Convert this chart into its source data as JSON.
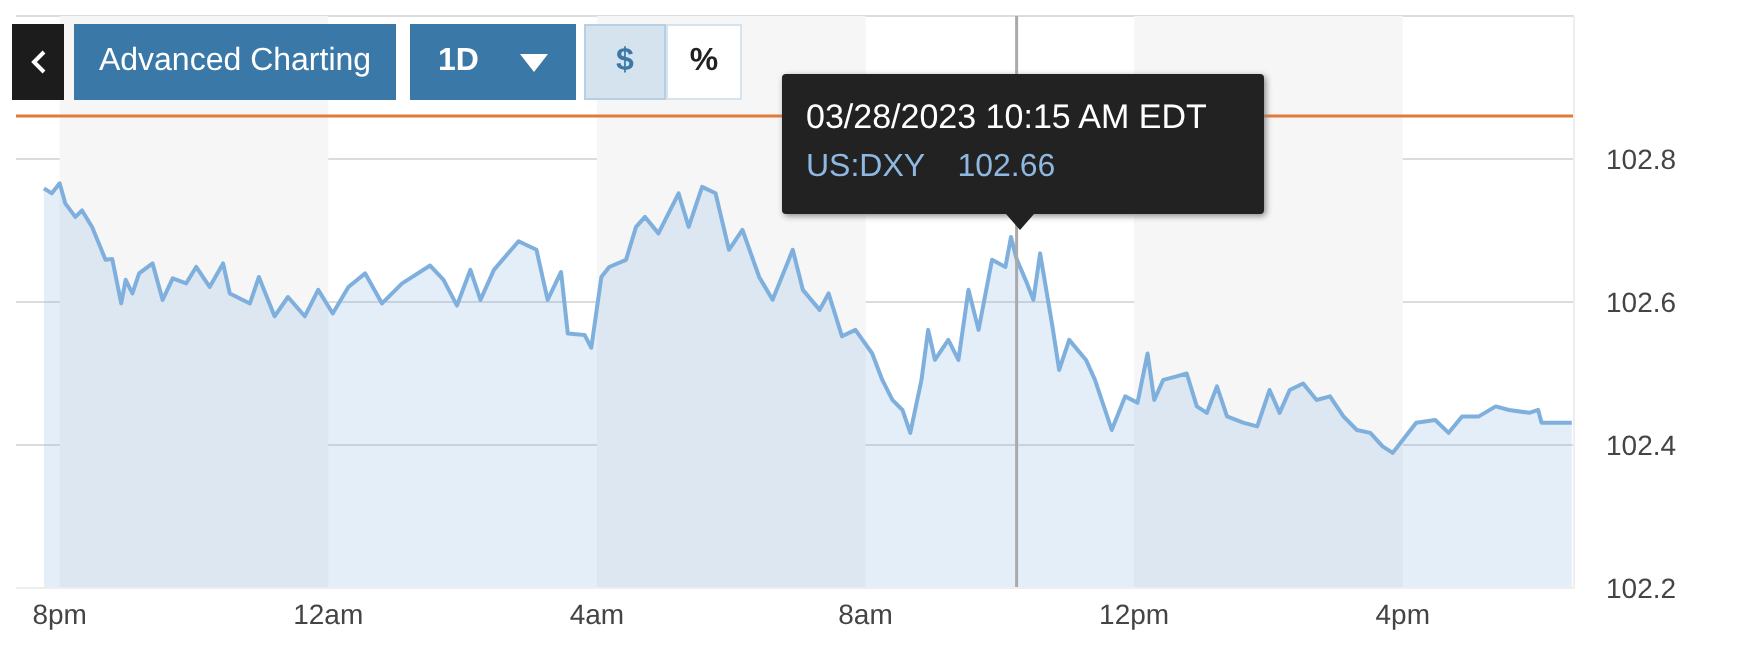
{
  "chart_data": {
    "type": "area",
    "color": "#7fb0dd",
    "x": [
      "2023-03-27T19:46",
      "2023-03-27T19:53",
      "2023-03-27T20:00",
      "2023-03-27T20:05",
      "2023-03-27T20:14",
      "2023-03-27T20:20",
      "2023-03-27T20:29",
      "2023-03-27T20:41",
      "2023-03-27T20:47",
      "2023-03-27T20:55",
      "2023-03-27T20:59",
      "2023-03-27T21:05",
      "2023-03-27T21:11",
      "2023-03-27T21:23",
      "2023-03-27T21:32",
      "2023-03-27T21:41",
      "2023-03-27T21:53",
      "2023-03-27T22:02",
      "2023-03-27T22:14",
      "2023-03-27T22:26",
      "2023-03-27T22:32",
      "2023-03-27T22:50",
      "2023-03-27T22:58",
      "2023-03-27T23:12",
      "2023-03-27T23:24",
      "2023-03-27T23:39",
      "2023-03-27T23:51",
      "2023-03-28T00:04",
      "2023-03-28T00:18",
      "2023-03-28T00:33",
      "2023-03-28T00:48",
      "2023-03-28T01:06",
      "2023-03-28T01:31",
      "2023-03-28T01:43",
      "2023-03-28T01:55",
      "2023-03-28T02:07",
      "2023-03-28T02:16",
      "2023-03-28T02:28",
      "2023-03-28T02:50",
      "2023-03-28T03:06",
      "2023-03-28T03:16",
      "2023-03-28T03:28",
      "2023-03-28T03:34",
      "2023-03-28T03:49",
      "2023-03-28T03:55",
      "2023-03-28T04:04",
      "2023-03-28T04:11",
      "2023-03-28T04:26",
      "2023-03-28T04:35",
      "2023-03-28T04:43",
      "2023-03-28T04:55",
      "2023-03-28T05:13",
      "2023-03-28T05:22",
      "2023-03-28T05:34",
      "2023-03-28T05:46",
      "2023-03-28T05:58",
      "2023-03-28T06:10",
      "2023-03-28T06:25",
      "2023-03-28T06:37",
      "2023-03-28T06:55",
      "2023-03-28T07:04",
      "2023-03-28T07:19",
      "2023-03-28T07:27",
      "2023-03-28T07:39",
      "2023-03-28T07:51",
      "2023-03-28T08:06",
      "2023-03-28T08:15",
      "2023-03-28T08:24",
      "2023-03-28T08:33",
      "2023-03-28T08:40",
      "2023-03-28T08:50",
      "2023-03-28T08:56",
      "2023-03-28T09:02",
      "2023-03-28T09:14",
      "2023-03-28T09:23",
      "2023-03-28T09:32",
      "2023-03-28T09:41",
      "2023-03-28T09:53",
      "2023-03-28T10:05",
      "2023-03-28T10:10",
      "2023-03-28T10:15",
      "2023-03-28T10:23",
      "2023-03-28T10:30",
      "2023-03-28T10:36",
      "2023-03-28T10:47",
      "2023-03-28T10:53",
      "2023-03-28T11:02",
      "2023-03-28T11:17",
      "2023-03-28T11:25",
      "2023-03-28T11:40",
      "2023-03-28T11:52",
      "2023-03-28T12:03",
      "2023-03-28T12:12",
      "2023-03-28T12:18",
      "2023-03-28T12:26",
      "2023-03-28T12:38",
      "2023-03-28T12:47",
      "2023-03-28T12:56",
      "2023-03-28T13:05",
      "2023-03-28T13:14",
      "2023-03-28T13:23",
      "2023-03-28T13:38",
      "2023-03-28T13:50",
      "2023-03-28T14:01",
      "2023-03-28T14:10",
      "2023-03-28T14:19",
      "2023-03-28T14:31",
      "2023-03-28T14:43",
      "2023-03-28T14:55",
      "2023-03-28T15:07",
      "2023-03-28T15:19",
      "2023-03-28T15:31",
      "2023-03-28T15:42",
      "2023-03-28T15:51",
      "2023-03-28T16:00",
      "2023-03-28T16:12",
      "2023-03-28T16:29",
      "2023-03-28T16:41",
      "2023-03-28T16:53",
      "2023-03-28T17:08",
      "2023-03-28T17:23",
      "2023-03-28T17:35",
      "2023-03-28T17:53",
      "2023-03-28T18:01",
      "2023-03-28T18:04",
      "2023-03-28T18:31"
    ],
    "values": [
      102.759,
      102.752,
      102.766,
      102.738,
      102.719,
      102.728,
      102.705,
      102.659,
      102.66,
      102.598,
      102.631,
      102.612,
      102.64,
      102.654,
      102.603,
      102.633,
      102.626,
      102.649,
      102.621,
      102.654,
      102.612,
      102.598,
      102.635,
      102.58,
      102.607,
      102.58,
      102.617,
      102.584,
      102.621,
      102.64,
      102.598,
      102.626,
      102.651,
      102.631,
      102.595,
      102.645,
      102.603,
      102.645,
      102.685,
      102.673,
      102.603,
      102.642,
      102.556,
      102.554,
      102.536,
      102.635,
      102.649,
      102.659,
      102.705,
      102.719,
      102.696,
      102.752,
      102.705,
      102.761,
      102.752,
      102.673,
      102.701,
      102.635,
      102.603,
      102.673,
      102.617,
      102.589,
      102.612,
      102.552,
      102.561,
      102.528,
      102.491,
      102.463,
      102.449,
      102.417,
      102.491,
      102.561,
      102.519,
      102.547,
      102.519,
      102.617,
      102.561,
      102.659,
      102.649,
      102.691,
      102.66,
      102.631,
      102.603,
      102.668,
      102.566,
      102.505,
      102.547,
      102.519,
      102.491,
      102.421,
      102.468,
      102.459,
      102.528,
      102.463,
      102.491,
      102.496,
      102.5,
      102.454,
      102.445,
      102.482,
      102.44,
      102.431,
      102.426,
      102.477,
      102.445,
      102.477,
      102.486,
      102.463,
      102.468,
      102.44,
      102.421,
      102.417,
      102.398,
      102.389,
      102.407,
      102.431,
      102.435,
      102.417,
      102.44,
      102.44,
      102.454,
      102.449,
      102.445,
      102.449,
      102.431,
      102.431
    ],
    "xlim": [
      "2023-03-27T19:21",
      "2023-03-28T18:33"
    ],
    "xticks": [
      {
        "value": "2023-03-27T20:00",
        "label": "8pm"
      },
      {
        "value": "2023-03-28T00:00",
        "label": "12am"
      },
      {
        "value": "2023-03-28T04:00",
        "label": "4am"
      },
      {
        "value": "2023-03-28T08:00",
        "label": "8am"
      },
      {
        "value": "2023-03-28T12:00",
        "label": "12pm"
      },
      {
        "value": "2023-03-28T16:00",
        "label": "4pm"
      }
    ],
    "ylim": [
      102.2,
      103.0
    ],
    "yticks": [
      102.2,
      102.4,
      102.6,
      102.8
    ],
    "grid": "y",
    "marker": "none",
    "line_style": "solid",
    "ref_lines": [
      {
        "axis": "y",
        "value": 102.86,
        "color": "#e07a3a"
      },
      {
        "axis": "x",
        "value": "2023-03-28T10:15",
        "color": "#aaaaaa"
      }
    ],
    "bands": [
      {
        "axis": "x",
        "from": "2023-03-27T20:00",
        "to": "2023-03-28T00:00",
        "color": "#f6f6f6"
      },
      {
        "axis": "x",
        "from": "2023-03-28T04:00",
        "to": "2023-03-28T08:00",
        "color": "#f6f6f6"
      },
      {
        "axis": "x",
        "from": "2023-03-28T12:00",
        "to": "2023-03-28T16:00",
        "color": "#f6f6f6"
      }
    ],
    "annotations": [
      "Advanced Charting",
      "1D",
      "$",
      "%",
      "03/28/2023 10:15 AM EDT",
      "US:DXY 102.66"
    ]
  }
}
